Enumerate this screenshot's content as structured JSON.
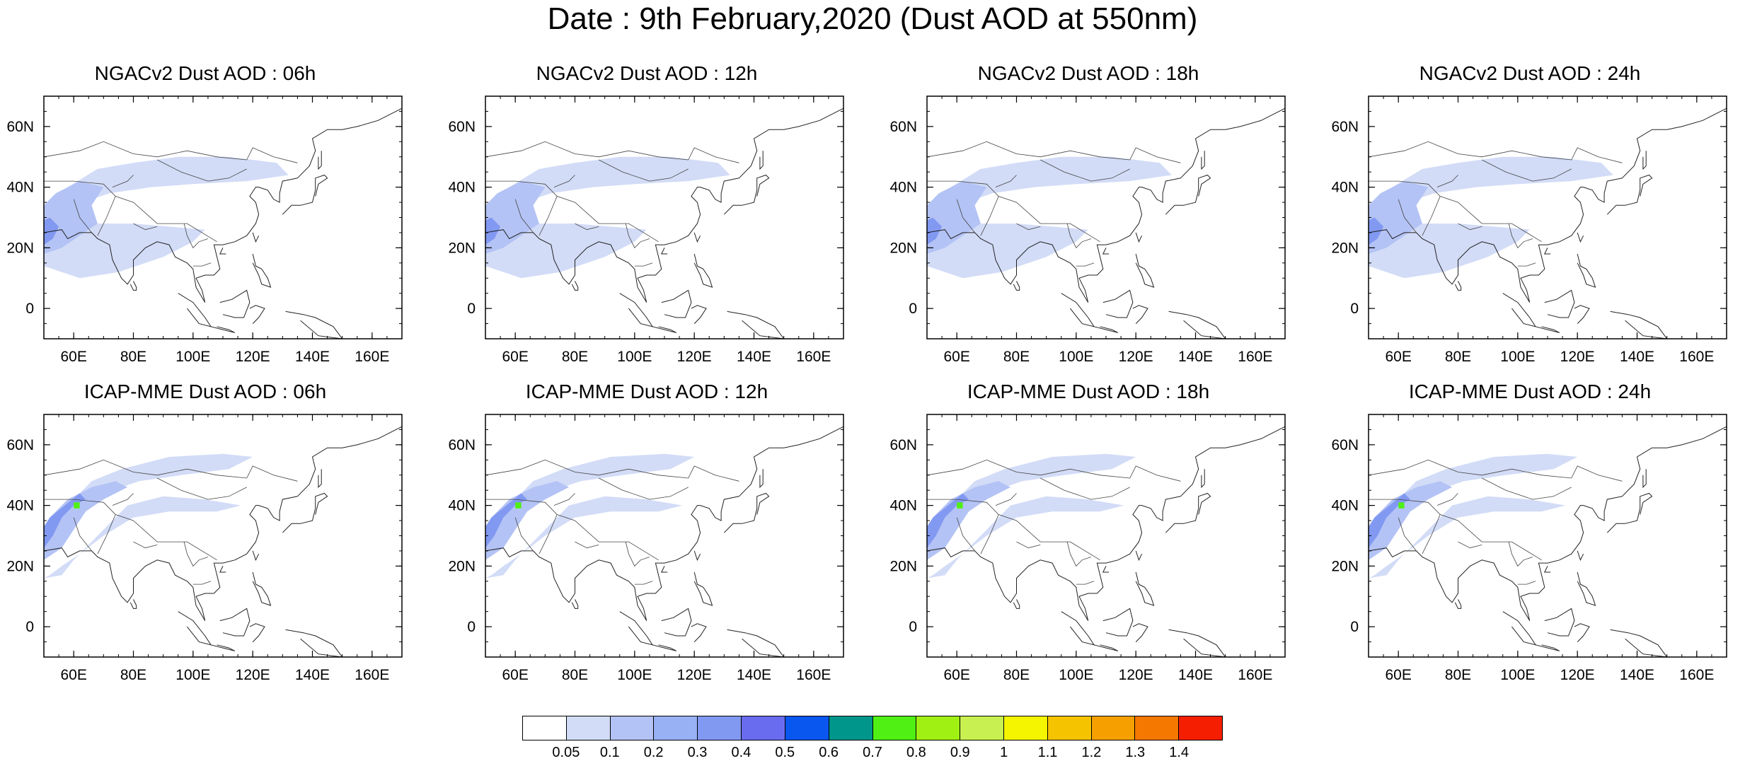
{
  "title": "Date : 9th February,2020 (Dust AOD at 550nm)",
  "x_ticks": [
    "60E",
    "80E",
    "100E",
    "120E",
    "140E",
    "160E"
  ],
  "x_tick_values": [
    60,
    80,
    100,
    120,
    140,
    160
  ],
  "y_ticks": [
    "60N",
    "40N",
    "20N",
    "0"
  ],
  "y_tick_values": [
    60,
    40,
    20,
    0
  ],
  "map_extent": {
    "lon": [
      50,
      170
    ],
    "lat": [
      -10,
      70
    ]
  },
  "panels": [
    {
      "title": "NGACv2 Dust AOD : 06h",
      "model": "NGACv2",
      "hour": "06h"
    },
    {
      "title": "NGACv2 Dust AOD : 12h",
      "model": "NGACv2",
      "hour": "12h"
    },
    {
      "title": "NGACv2 Dust AOD : 18h",
      "model": "NGACv2",
      "hour": "18h"
    },
    {
      "title": "NGACv2 Dust AOD : 24h",
      "model": "NGACv2",
      "hour": "24h"
    },
    {
      "title": "ICAP-MME Dust AOD : 06h",
      "model": "ICAP-MME",
      "hour": "06h"
    },
    {
      "title": "ICAP-MME Dust AOD : 12h",
      "model": "ICAP-MME",
      "hour": "12h"
    },
    {
      "title": "ICAP-MME Dust AOD : 18h",
      "model": "ICAP-MME",
      "hour": "18h"
    },
    {
      "title": "ICAP-MME Dust AOD : 24h",
      "model": "ICAP-MME",
      "hour": "24h"
    }
  ],
  "colorbar": {
    "labels": [
      "0.05",
      "0.1",
      "0.2",
      "0.3",
      "0.4",
      "0.5",
      "0.6",
      "0.7",
      "0.8",
      "0.9",
      "1",
      "1.1",
      "1.2",
      "1.3",
      "1.4"
    ],
    "colors": [
      "#ffffff",
      "#d2dcf7",
      "#b4c3f5",
      "#98b1f5",
      "#8299f2",
      "#6a6cf0",
      "#0a57f0",
      "#00968c",
      "#50f014",
      "#a0f014",
      "#c8f050",
      "#f5f500",
      "#f5c300",
      "#f5a000",
      "#f57800",
      "#f51e00"
    ]
  }
}
